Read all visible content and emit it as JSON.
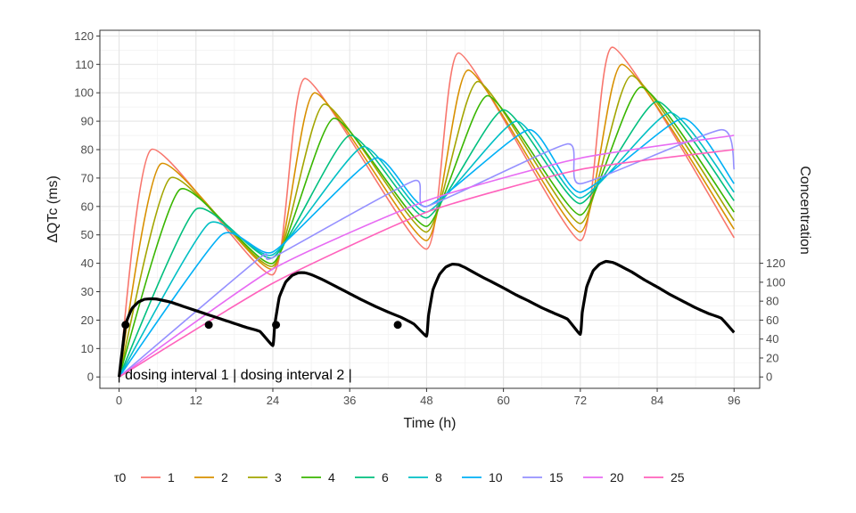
{
  "chart_data": {
    "type": "line",
    "xlabel": "Time (h)",
    "ylabel": "ΔQTc (ms)",
    "y2label": "Concentration",
    "xlim": [
      -3,
      100
    ],
    "ylim": [
      -4,
      122
    ],
    "x_ticks": [
      0,
      12,
      24,
      36,
      48,
      60,
      72,
      84,
      96
    ],
    "y_ticks": [
      0,
      10,
      20,
      30,
      40,
      50,
      60,
      70,
      80,
      90,
      100,
      110,
      120
    ],
    "y2_ticks": [
      0,
      20,
      40,
      60,
      80,
      100,
      120
    ],
    "y2_scale": "concentration = 3 × ΔQTc",
    "grid": true,
    "legend_position": "bottom",
    "legend_title": "τ0",
    "annotation": "| dosing interval 1 | dosing interval 2 |",
    "colors": [
      "#F8766D",
      "#D89000",
      "#A3A500",
      "#39B600",
      "#00BF7D",
      "#00BFC4",
      "#00B0F6",
      "#9590FF",
      "#E76BF3",
      "#FF62BC"
    ],
    "series": [
      {
        "name": "1",
        "x": [
          0,
          5,
          24,
          29,
          48,
          53,
          72,
          77,
          96
        ],
        "values": [
          0,
          80,
          36,
          105,
          45,
          114,
          48,
          116,
          49
        ]
      },
      {
        "name": "2",
        "x": [
          0,
          6.5,
          24,
          30.5,
          48,
          54.5,
          72,
          78.5,
          96
        ],
        "values": [
          0,
          75,
          38,
          100,
          48,
          108,
          51,
          110,
          52
        ]
      },
      {
        "name": "3",
        "x": [
          0,
          8,
          24,
          32,
          48,
          56,
          72,
          80,
          96
        ],
        "values": [
          0,
          70,
          39,
          96,
          51,
          104,
          54,
          106,
          55
        ]
      },
      {
        "name": "4",
        "x": [
          0,
          9.5,
          24,
          33.5,
          48,
          57.5,
          72,
          81.5,
          96
        ],
        "values": [
          0,
          66,
          40,
          91,
          53,
          99,
          57,
          102,
          58
        ]
      },
      {
        "name": "6",
        "x": [
          0,
          12,
          24,
          36,
          48,
          60,
          72,
          84,
          96
        ],
        "values": [
          0,
          59,
          42,
          85,
          56,
          94,
          61,
          97,
          62
        ]
      },
      {
        "name": "8",
        "x": [
          0,
          14,
          24,
          38,
          48,
          62,
          72,
          86,
          96
        ],
        "values": [
          0,
          54,
          43,
          81,
          58,
          90,
          63,
          93,
          65
        ]
      },
      {
        "name": "10",
        "x": [
          0,
          16,
          24,
          40,
          48,
          64,
          72,
          88,
          96
        ],
        "values": [
          0,
          50,
          44,
          77,
          60,
          87,
          65,
          91,
          68
        ]
      },
      {
        "name": "15",
        "x": [
          0,
          22,
          24,
          46,
          48,
          70,
          72,
          94,
          96
        ],
        "values": [
          0,
          42,
          42,
          69,
          60,
          82,
          68,
          87,
          73
        ]
      },
      {
        "name": "20",
        "x": [
          0,
          24,
          48,
          72,
          96
        ],
        "values": [
          0,
          38,
          62,
          77,
          85
        ]
      },
      {
        "name": "25",
        "x": [
          0,
          24,
          48,
          72,
          96
        ],
        "values": [
          0,
          33,
          58,
          73,
          80
        ]
      }
    ],
    "concentration": {
      "name": "Concentration",
      "x": [
        0,
        1,
        2,
        3,
        4,
        5,
        6,
        8,
        10,
        12,
        14,
        16,
        18,
        20,
        22,
        24,
        24.3,
        25,
        26,
        27,
        28,
        29,
        30,
        32,
        34,
        36,
        38,
        40,
        42,
        44,
        46,
        48,
        48.3,
        49,
        50,
        51,
        52,
        53,
        54,
        56,
        58,
        60,
        62,
        64,
        66,
        68,
        70,
        72,
        72.3,
        73,
        74,
        75,
        76,
        77,
        78,
        80,
        82,
        84,
        86,
        88,
        90,
        92,
        94,
        96
      ],
      "values": [
        0,
        55,
        72,
        79,
        82,
        82.5,
        82,
        79,
        74.5,
        70,
        65.5,
        61,
        56.5,
        52,
        48,
        33,
        55,
        84,
        100,
        107,
        110,
        110,
        108,
        102,
        95,
        88,
        81,
        74.5,
        68.5,
        63,
        56,
        43,
        65,
        92,
        108,
        116,
        119,
        118.5,
        115.5,
        108,
        101,
        94,
        86.5,
        80,
        73,
        67,
        61,
        45,
        68,
        95,
        112,
        119,
        122,
        121,
        118,
        111,
        102.5,
        95,
        87,
        80,
        73,
        67,
        62,
        47
      ]
    },
    "concentration_markers": {
      "x": [
        1,
        14,
        24.5,
        43.5
      ],
      "values": [
        55,
        55,
        55,
        55
      ]
    }
  }
}
